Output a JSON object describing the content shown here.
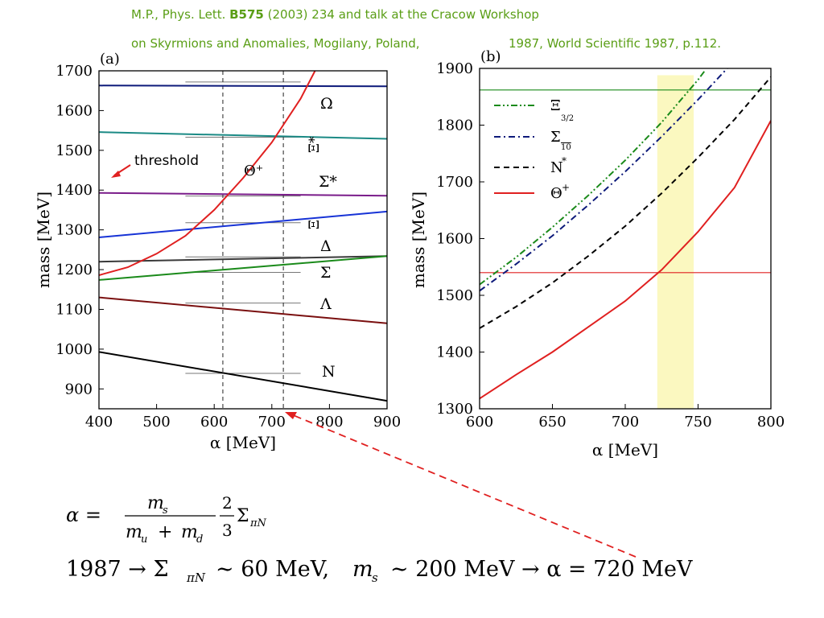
{
  "header": {
    "line1_pre": "M.P., Phys. Lett. ",
    "line1_bold": "B575",
    "line1_post": " (2003) 234 and talk at the Cracow Workshop",
    "line2a": "on Skyrmions and Anomalies, Mogilany, Poland,",
    "line2b": "1987, World Scientific 1987, p.112."
  },
  "colors": {
    "ref_text": "#5a9e16",
    "omega": "#0d1a7a",
    "xi_star": "#1b8a85",
    "sigma_star": "#7a1c8a",
    "xi": "#1733d6",
    "delta": "#3a3a3a",
    "sigma": "#1a8a1a",
    "lambda": "#7a0f0f",
    "nucleon": "#000000",
    "theta": "#e02020",
    "band": "#fbf8c0",
    "threshold_arrow": "#e02020"
  },
  "chart_data": [
    {
      "type": "line",
      "panel_label": "(a)",
      "xlabel": "α [MeV]",
      "ylabel": "mass [MeV]",
      "xlim": [
        400,
        900
      ],
      "ylim": [
        850,
        1700
      ],
      "xticks": [
        400,
        500,
        600,
        700,
        800,
        900
      ],
      "yticks": [
        900,
        1000,
        1100,
        1200,
        1300,
        1400,
        1500,
        1600,
        1700
      ],
      "vlines": [
        615,
        720
      ],
      "series": [
        {
          "name": "Ω",
          "color_key": "omega",
          "x": [
            400,
            900
          ],
          "y": [
            1663,
            1661
          ]
        },
        {
          "name": "Ξ*",
          "color_key": "xi_star",
          "x": [
            400,
            900
          ],
          "y": [
            1546,
            1529
          ]
        },
        {
          "name": "Σ*",
          "color_key": "sigma_star",
          "x": [
            400,
            900
          ],
          "y": [
            1393,
            1386
          ]
        },
        {
          "name": "Ξ",
          "color_key": "xi",
          "x": [
            400,
            900
          ],
          "y": [
            1281,
            1346
          ]
        },
        {
          "name": "Δ",
          "color_key": "delta",
          "x": [
            400,
            900
          ],
          "y": [
            1220,
            1234
          ]
        },
        {
          "name": "Σ",
          "color_key": "sigma",
          "x": [
            400,
            900
          ],
          "y": [
            1174,
            1234
          ]
        },
        {
          "name": "Λ",
          "color_key": "lambda",
          "x": [
            400,
            900
          ],
          "y": [
            1130,
            1065
          ]
        },
        {
          "name": "N",
          "color_key": "nucleon",
          "x": [
            400,
            900
          ],
          "y": [
            993,
            870
          ]
        },
        {
          "name": "Θ+",
          "color_key": "theta",
          "x": [
            400,
            450,
            500,
            550,
            600,
            650,
            700,
            750,
            775
          ],
          "y": [
            1186,
            1206,
            1240,
            1285,
            1350,
            1430,
            1520,
            1630,
            1700
          ]
        }
      ],
      "experimental_levels": [
        {
          "x": [
            550,
            750
          ],
          "y": 1672
        },
        {
          "x": [
            550,
            750
          ],
          "y": 1533
        },
        {
          "x": [
            550,
            750
          ],
          "y": 1385
        },
        {
          "x": [
            550,
            750
          ],
          "y": 1318
        },
        {
          "x": [
            550,
            750
          ],
          "y": 1232
        },
        {
          "x": [
            550,
            750
          ],
          "y": 1193
        },
        {
          "x": [
            550,
            750
          ],
          "y": 1116
        },
        {
          "x": [
            550,
            750
          ],
          "y": 939
        }
      ],
      "annotations": [
        "threshold",
        "Θ⁺"
      ],
      "curve_labels": [
        "Ω",
        "Ξ*",
        "Σ*",
        "Ξ",
        "Δ",
        "Σ",
        "Λ",
        "N"
      ]
    },
    {
      "type": "line",
      "panel_label": "(b)",
      "xlabel": "α [MeV]",
      "ylabel": "mass [MeV]",
      "xlim": [
        600,
        800
      ],
      "ylim": [
        1300,
        1900
      ],
      "xticks": [
        600,
        650,
        700,
        750,
        800
      ],
      "yticks": [
        1300,
        1400,
        1500,
        1600,
        1700,
        1800,
        1900
      ],
      "band_x": [
        722,
        747
      ],
      "hlines": [
        {
          "y": 1862,
          "color_key": "sigma"
        },
        {
          "y": 1540,
          "color_key": "theta"
        }
      ],
      "legend": [
        "Ξ3/2",
        "Σ10",
        "N*",
        "Θ+"
      ],
      "legend_position": "top-left",
      "series": [
        {
          "name": "Ξ3/2",
          "color_key": "sigma",
          "style": "dash-dot-dot",
          "x": [
            600,
            625,
            650,
            675,
            700,
            725,
            750,
            755
          ],
          "y": [
            1519,
            1567,
            1620,
            1677,
            1738,
            1805,
            1880,
            1897
          ]
        },
        {
          "name": "Σ10",
          "color_key": "omega",
          "style": "dash-dot",
          "x": [
            600,
            625,
            650,
            675,
            700,
            725,
            750,
            770
          ],
          "y": [
            1508,
            1555,
            1605,
            1660,
            1718,
            1780,
            1845,
            1900
          ]
        },
        {
          "name": "N*",
          "color_key": "nucleon",
          "style": "dash",
          "x": [
            600,
            625,
            650,
            675,
            700,
            725,
            750,
            775,
            800
          ],
          "y": [
            1442,
            1480,
            1522,
            1570,
            1622,
            1680,
            1743,
            1810,
            1885
          ]
        },
        {
          "name": "Θ+",
          "color_key": "theta",
          "style": "solid",
          "x": [
            600,
            625,
            650,
            675,
            700,
            725,
            750,
            775,
            800
          ],
          "y": [
            1318,
            1360,
            1400,
            1445,
            1490,
            1545,
            1612,
            1690,
            1808
          ]
        }
      ]
    }
  ],
  "equations": {
    "alpha_eq": "α = (m_s / (m_u + m_d)) · (2/3) Σ_πN",
    "alpha_lhs": "α =",
    "frac1_num": "m",
    "frac1_num_sub": "s",
    "frac1_den_a": "m",
    "frac1_den_a_sub": "u",
    "frac1_den_plus": "+",
    "frac1_den_b": "m",
    "frac1_den_b_sub": "d",
    "frac2_num": "2",
    "frac2_den": "3",
    "sigma_term": "Σ",
    "sigma_sub": "πN",
    "line2_text": "1987 → Σ_πN ∼ 60 MeV,   m_s ∼ 200 MeV → α = 720 MeV",
    "line2_p1": "1987 → Σ",
    "line2_p1_sub": "πN",
    "line2_p2": "∼ 60 MeV,",
    "line2_p3": "m",
    "line2_p3_sub": "s",
    "line2_p4": "∼ 200 MeV → α = 720 MeV"
  }
}
